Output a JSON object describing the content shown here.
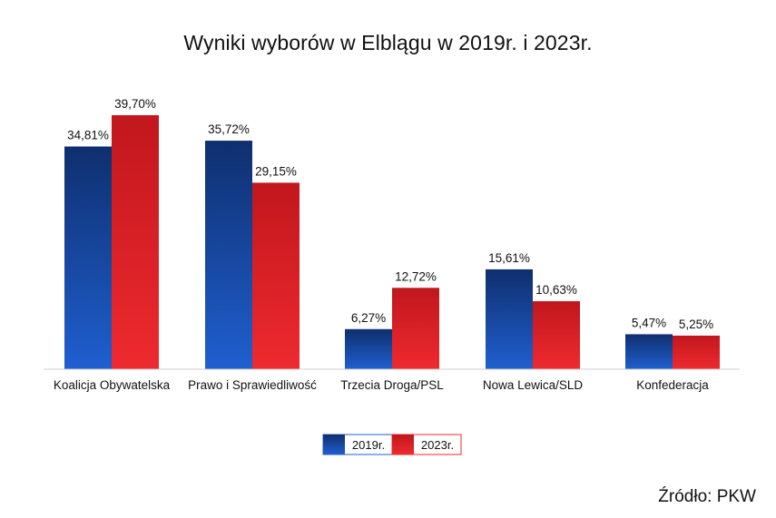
{
  "title": "Wyniki wyborów w Elblągu w 2019r. i 2023r.",
  "source": "Źródło: PKW",
  "colors": {
    "2019_top": "#0f2f6e",
    "2019_bottom": "#1f5fd0",
    "2023_top": "#c1171d",
    "2023_bottom": "#ee2a2f"
  },
  "chart_data": {
    "type": "bar",
    "categories": [
      "Koalicja Obywatelska",
      "Prawo i Sprawiedliwość",
      "Trzecia Droga/PSL",
      "Nowa Lewica/SLD",
      "Konfederacja"
    ],
    "series": [
      {
        "name": "2019r.",
        "values": [
          34.81,
          35.72,
          6.27,
          15.61,
          5.47
        ],
        "labels": [
          "34,81%",
          "35,72%",
          "6,27%",
          "15,61%",
          "5,47%"
        ]
      },
      {
        "name": "2023r.",
        "values": [
          39.7,
          29.15,
          12.72,
          10.63,
          5.25
        ],
        "labels": [
          "39,70%",
          "29,15%",
          "12,72%",
          "10,63%",
          "5,25%"
        ]
      }
    ],
    "ylim": [
      0,
      39.7
    ],
    "grid": false,
    "legend": "bottom-center"
  }
}
